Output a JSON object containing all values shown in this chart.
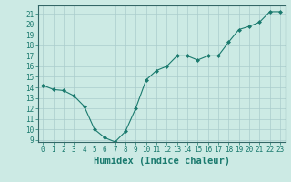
{
  "x": [
    0,
    1,
    2,
    3,
    4,
    5,
    6,
    7,
    8,
    9,
    10,
    11,
    12,
    13,
    14,
    15,
    16,
    17,
    18,
    19,
    20,
    21,
    22,
    23
  ],
  "y": [
    14.2,
    13.8,
    13.7,
    13.2,
    12.2,
    10.0,
    9.2,
    8.8,
    9.8,
    12.0,
    14.7,
    15.6,
    16.0,
    17.0,
    17.0,
    16.6,
    17.0,
    17.0,
    18.3,
    19.5,
    19.8,
    20.2,
    21.2,
    21.2
  ],
  "line_color": "#1a7a6e",
  "marker": "D",
  "marker_size": 2.0,
  "bg_color": "#cceae4",
  "grid_color": "#aacccc",
  "xlabel": "Humidex (Indice chaleur)",
  "ylim": [
    8.8,
    21.8
  ],
  "xlim": [
    -0.5,
    23.5
  ],
  "yticks": [
    9,
    10,
    11,
    12,
    13,
    14,
    15,
    16,
    17,
    18,
    19,
    20,
    21
  ],
  "xticks": [
    0,
    1,
    2,
    3,
    4,
    5,
    6,
    7,
    8,
    9,
    10,
    11,
    12,
    13,
    14,
    15,
    16,
    17,
    18,
    19,
    20,
    21,
    22,
    23
  ],
  "tick_label_fontsize": 5.5,
  "xlabel_fontsize": 7.5,
  "tick_color": "#1a7a6e",
  "axis_color": "#1a7a6e",
  "spine_color": "#336666"
}
